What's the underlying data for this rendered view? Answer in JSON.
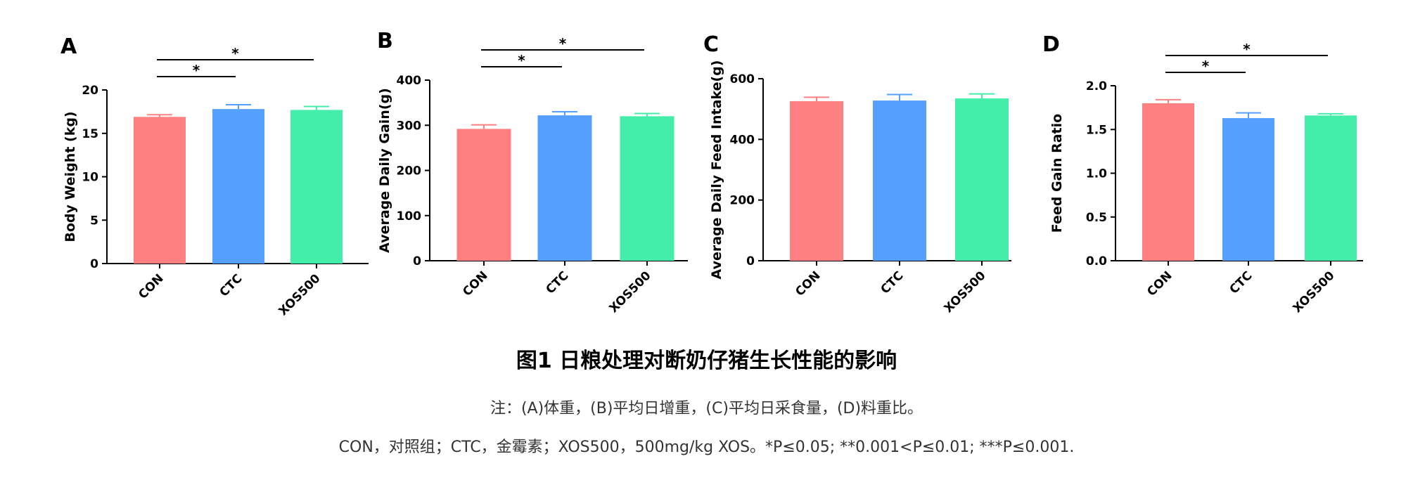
{
  "chart_data": [
    {
      "type": "bar",
      "panel": "A",
      "ylabel": "Body Weight (kg)",
      "categories": [
        "CON",
        "CTC",
        "XOS500"
      ],
      "values": [
        16.9,
        17.8,
        17.7
      ],
      "errors": [
        0.25,
        0.5,
        0.4
      ],
      "ylim": [
        0,
        20
      ],
      "yticks": [
        "0",
        "5",
        "10",
        "15",
        "20"
      ],
      "yticks_values": [
        0,
        5,
        10,
        15,
        20
      ],
      "colors": [
        "#ff8080",
        "#55a0ff",
        "#44eeaa"
      ],
      "significance": [
        {
          "from": 0,
          "to": 1,
          "label": "*"
        },
        {
          "from": 0,
          "to": 2,
          "label": "*"
        }
      ]
    },
    {
      "type": "bar",
      "panel": "B",
      "ylabel": "Average Daily Gain(g)",
      "categories": [
        "CON",
        "CTC",
        "XOS500"
      ],
      "values": [
        292,
        322,
        320
      ],
      "errors": [
        9,
        8,
        6
      ],
      "ylim": [
        0,
        400
      ],
      "yticks": [
        "0",
        "100",
        "200",
        "300",
        "400"
      ],
      "yticks_values": [
        0,
        100,
        200,
        300,
        400
      ],
      "colors": [
        "#ff8080",
        "#55a0ff",
        "#44eeaa"
      ],
      "significance": [
        {
          "from": 0,
          "to": 1,
          "label": "*"
        },
        {
          "from": 0,
          "to": 2,
          "label": "*"
        }
      ]
    },
    {
      "type": "bar",
      "panel": "C",
      "ylabel": "Average Daily Feed Intake(g)",
      "categories": [
        "CON",
        "CTC",
        "XOS500"
      ],
      "values": [
        526,
        528,
        535
      ],
      "errors": [
        13,
        20,
        15
      ],
      "ylim": [
        0,
        600
      ],
      "yticks": [
        "0",
        "200",
        "400",
        "600"
      ],
      "yticks_values": [
        0,
        200,
        400,
        600
      ],
      "colors": [
        "#ff8080",
        "#55a0ff",
        "#44eeaa"
      ],
      "significance": []
    },
    {
      "type": "bar",
      "panel": "D",
      "ylabel": "Feed Gain Ratio",
      "categories": [
        "CON",
        "CTC",
        "XOS500"
      ],
      "values": [
        1.8,
        1.63,
        1.66
      ],
      "errors": [
        0.04,
        0.06,
        0.02
      ],
      "ylim": [
        0,
        2.0
      ],
      "yticks": [
        "0.0",
        "0.5",
        "1.0",
        "1.5",
        "2.0"
      ],
      "yticks_values": [
        0,
        0.5,
        1.0,
        1.5,
        2.0
      ],
      "colors": [
        "#ff8080",
        "#55a0ff",
        "#44eeaa"
      ],
      "significance": [
        {
          "from": 0,
          "to": 1,
          "label": "*"
        },
        {
          "from": 0,
          "to": 2,
          "label": "*"
        }
      ]
    }
  ],
  "caption": {
    "title": "图1 日粮处理对断奶仔猪生长性能的影响",
    "note_line1": "注：(A)体重，(B)平均日增重，(C)平均日采食量，(D)料重比。",
    "note_line2": "CON，对照组；CTC，金霉素；XOS500，500mg/kg XOS。*P≤0.05; **0.001<P≤0.01; ***P≤0.001."
  }
}
